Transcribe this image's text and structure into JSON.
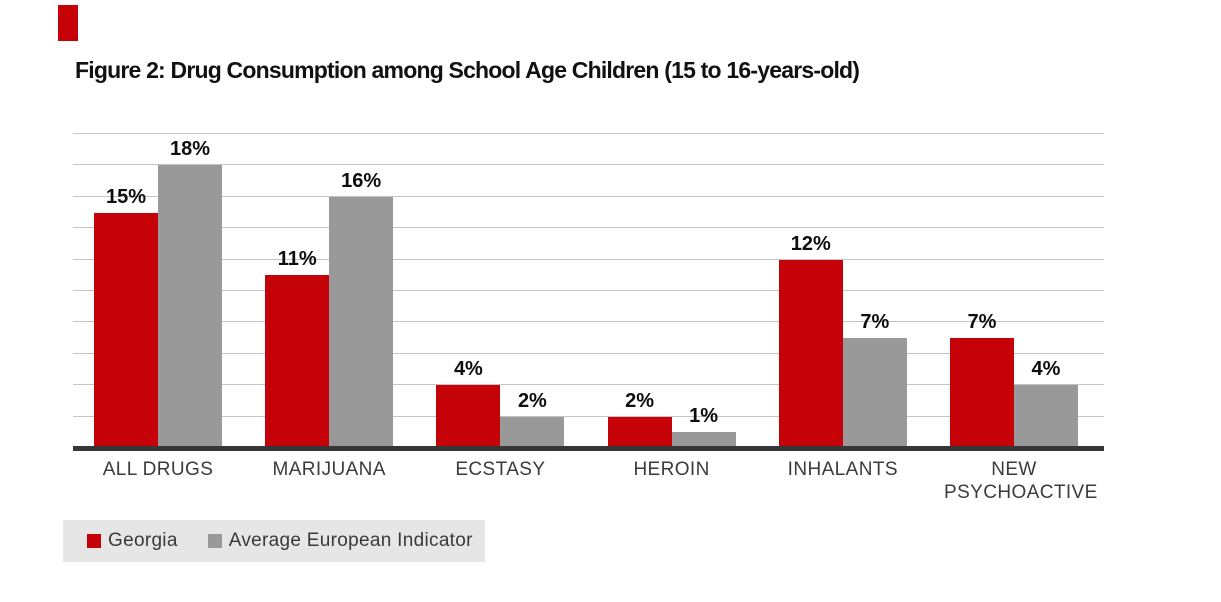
{
  "figure": {
    "title": "Figure 2: Drug Consumption among School Age Children (15 to 16-years-old)"
  },
  "colors": {
    "georgia_red": "#c60209",
    "average_gray": "#999999",
    "accent_red": "#c60209",
    "gridline": "#c4c4c4",
    "axis_line": "#363636",
    "legend_bg": "#e6e6e6",
    "category_text": "#3b3b3b",
    "value_text": "#0d0d0d"
  },
  "legend": {
    "items": [
      {
        "label": "Georgia",
        "color_key": "georgia_red"
      },
      {
        "label": "Average European Indicator",
        "color_key": "average_gray"
      }
    ]
  },
  "chart_data": {
    "type": "bar",
    "title": "Figure 2: Drug Consumption among School Age Children (15 to 16-years-old)",
    "categories": [
      "ALL DRUGS",
      "MARIJUANA",
      "ECSTASY",
      "HEROIN",
      "INHALANTS",
      "NEW PSYCHOACTIVE"
    ],
    "series": [
      {
        "name": "Georgia",
        "color_key": "georgia_red",
        "values": [
          15,
          11,
          4,
          2,
          12,
          7
        ]
      },
      {
        "name": "Average European Indicator",
        "color_key": "average_gray",
        "values": [
          18,
          16,
          2,
          1,
          7,
          4
        ]
      }
    ],
    "value_suffix": "%",
    "ylim": [
      0,
      20
    ],
    "grid": true,
    "gridline_step": 2,
    "y_axis_labels_visible": false,
    "data_labels": true,
    "legend_position": "bottom-left"
  }
}
